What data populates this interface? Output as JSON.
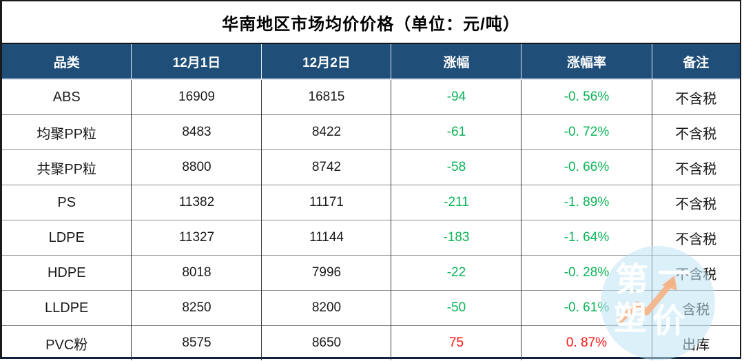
{
  "title": "华南地区市场均价价格（单位：元/吨）",
  "table": {
    "headers": [
      "品类",
      "12月1日",
      "12月2日",
      "涨幅",
      "涨幅率",
      "备注"
    ],
    "rows": [
      {
        "category": "ABS",
        "dec1": "16909",
        "dec2": "16815",
        "change": "-94",
        "rate": "-0. 56%",
        "note": "不含税",
        "direction": "down"
      },
      {
        "category": "均聚PP粒",
        "dec1": "8483",
        "dec2": "8422",
        "change": "-61",
        "rate": "-0. 72%",
        "note": "不含税",
        "direction": "down"
      },
      {
        "category": "共聚PP粒",
        "dec1": "8800",
        "dec2": "8742",
        "change": "-58",
        "rate": "-0. 66%",
        "note": "不含税",
        "direction": "down"
      },
      {
        "category": "PS",
        "dec1": "11382",
        "dec2": "11171",
        "change": "-211",
        "rate": "-1. 89%",
        "note": "不含税",
        "direction": "down"
      },
      {
        "category": "LDPE",
        "dec1": "11327",
        "dec2": "11144",
        "change": "-183",
        "rate": "-1. 64%",
        "note": "不含税",
        "direction": "down"
      },
      {
        "category": "HDPE",
        "dec1": "8018",
        "dec2": "7996",
        "change": "-22",
        "rate": "-0. 28%",
        "note": "不含税",
        "direction": "down"
      },
      {
        "category": "LLDPE",
        "dec1": "8250",
        "dec2": "8200",
        "change": "-50",
        "rate": "-0. 61%",
        "note": "含税",
        "direction": "down"
      },
      {
        "category": "PVC粉",
        "dec1": "8575",
        "dec2": "8650",
        "change": "75",
        "rate": "0. 87%",
        "note": "出库",
        "direction": "up"
      }
    ]
  },
  "watermark": {
    "chars": [
      "第",
      "一",
      "塑",
      "价"
    ]
  },
  "colors": {
    "header_bg": "#1f4e79",
    "down_green": "#0bb457",
    "up_red": "#fd1310",
    "watermark_blue": "#cfeaf7",
    "watermark_arrow": "#f5b183"
  },
  "chart_data": {
    "type": "table",
    "title": "华南地区市场均价价格（单位：元/吨）",
    "columns": [
      "品类",
      "12月1日",
      "12月2日",
      "涨幅",
      "涨幅率",
      "备注"
    ],
    "rows": [
      [
        "ABS",
        16909,
        16815,
        -94,
        "-0.56%",
        "不含税"
      ],
      [
        "均聚PP粒",
        8483,
        8422,
        -61,
        "-0.72%",
        "不含税"
      ],
      [
        "共聚PP粒",
        8800,
        8742,
        -58,
        "-0.66%",
        "不含税"
      ],
      [
        "PS",
        11382,
        11171,
        -211,
        "-1.89%",
        "不含税"
      ],
      [
        "LDPE",
        11327,
        11144,
        -183,
        "-1.64%",
        "不含税"
      ],
      [
        "HDPE",
        8018,
        7996,
        -22,
        "-0.28%",
        "不含税"
      ],
      [
        "LLDPE",
        8250,
        8200,
        -50,
        "-0.61%",
        "含税"
      ],
      [
        "PVC粉",
        8575,
        8650,
        75,
        "0.87%",
        "出库"
      ]
    ],
    "notes": "负值为绿色，正值为红色"
  }
}
